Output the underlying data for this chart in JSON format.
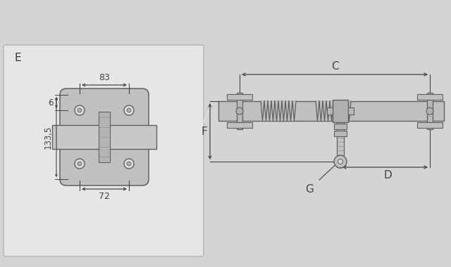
{
  "bg_color": "#d4d4d4",
  "panel_bg": "#e8e8e8",
  "part_color": "#c0c0c0",
  "part_edge": "#606060",
  "dim_color": "#444444",
  "white": "#ffffff",
  "label_E": "E",
  "label_83": "83",
  "label_6": "6",
  "label_133_5": "133,5",
  "label_72": "72",
  "label_C": "C",
  "label_F": "F",
  "label_D": "D",
  "label_G": "G"
}
